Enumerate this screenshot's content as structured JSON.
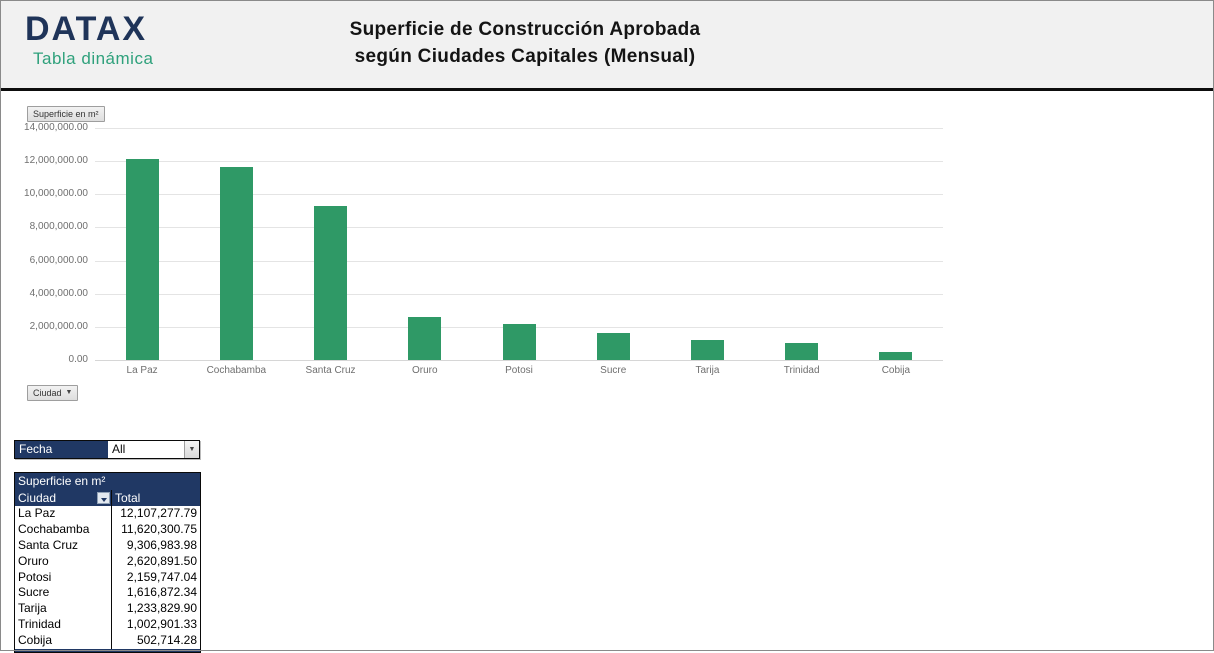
{
  "header": {
    "logo": "DATAX",
    "logo_subtitle": "Tabla dinámica",
    "title_line1": "Superficie de Construcción Aprobada",
    "title_line2": "según Ciudades Capitales (Mensual)"
  },
  "chart": {
    "value_field_button": "Superficie en m²",
    "axis_field_button": "Ciudad",
    "y_ticks": [
      "14,000,000.00",
      "12,000,000.00",
      "10,000,000.00",
      "8,000,000.00",
      "6,000,000.00",
      "4,000,000.00",
      "2,000,000.00",
      "0.00"
    ]
  },
  "chart_data": {
    "type": "bar",
    "categories": [
      "La Paz",
      "Cochabamba",
      "Santa Cruz",
      "Oruro",
      "Potosi",
      "Sucre",
      "Tarija",
      "Trinidad",
      "Cobija"
    ],
    "values": [
      12107277.79,
      11620300.75,
      9306983.98,
      2620891.5,
      2159747.04,
      1616872.34,
      1233829.9,
      1002901.33,
      502714.28
    ],
    "title": "Superficie de Construcción Aprobada según Ciudades Capitales (Mensual)",
    "xlabel": "Ciudad",
    "ylabel": "Superficie en m²",
    "ylim": [
      0,
      14000000
    ],
    "grid": true,
    "legend": "none",
    "bar_color": "#2F9966"
  },
  "filter": {
    "label": "Fecha",
    "value": "All"
  },
  "pivot_table": {
    "title": "Superficie en m²",
    "col1_header": "Ciudad",
    "col2_header": "Total",
    "rows": [
      {
        "ciudad": "La Paz",
        "total": "12,107,277.79"
      },
      {
        "ciudad": "Cochabamba",
        "total": "11,620,300.75"
      },
      {
        "ciudad": "Santa Cruz",
        "total": "9,306,983.98"
      },
      {
        "ciudad": "Oruro",
        "total": "2,620,891.50"
      },
      {
        "ciudad": "Potosi",
        "total": "2,159,747.04"
      },
      {
        "ciudad": "Sucre",
        "total": "1,616,872.34"
      },
      {
        "ciudad": "Tarija",
        "total": "1,233,829.90"
      },
      {
        "ciudad": "Trinidad",
        "total": "1,002,901.33"
      },
      {
        "ciudad": "Cobija",
        "total": "502,714.28"
      }
    ]
  },
  "icons": {
    "dropdown_arrow": "▼",
    "combo_arrow": "▼"
  },
  "colors": {
    "navy": "#203864",
    "bar_green": "#2F9966",
    "logo_navy": "#1F3459",
    "logo_teal": "#2FA17C",
    "header_band": "#F1F1F1"
  }
}
